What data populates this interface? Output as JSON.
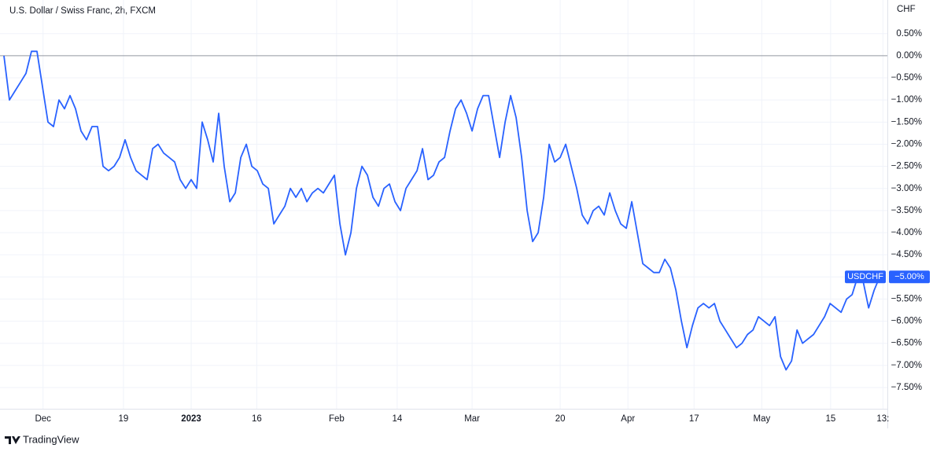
{
  "chart_data": {
    "type": "line",
    "title": "U.S. Dollar / Swiss Franc, 2h, FXCM",
    "y_unit": "CHF",
    "brand": "TradingView",
    "baseline": 0,
    "grid": true,
    "xlim": [
      0,
      160.4
    ],
    "ylim": [
      -7.98,
      1.26
    ],
    "xticks": [
      {
        "value": 7.1,
        "label": "Dec"
      },
      {
        "value": 21.7,
        "label": "19"
      },
      {
        "value": 34,
        "label": "2023",
        "bold": true
      },
      {
        "value": 45.9,
        "label": "16"
      },
      {
        "value": 60.4,
        "label": "Feb"
      },
      {
        "value": 71.4,
        "label": "14"
      },
      {
        "value": 85,
        "label": "Mar"
      },
      {
        "value": 101,
        "label": "20"
      },
      {
        "value": 113.3,
        "label": "Apr"
      },
      {
        "value": 125.3,
        "label": "17"
      },
      {
        "value": 137.6,
        "label": "May"
      },
      {
        "value": 150.1,
        "label": "15"
      },
      {
        "value": 159.6,
        "label": "13:"
      }
    ],
    "yticks": [
      {
        "value": 0.5,
        "label": "0.50%"
      },
      {
        "value": 0,
        "label": "0.00%"
      },
      {
        "value": -0.5,
        "label": "−0.50%"
      },
      {
        "value": -1,
        "label": "−1.00%"
      },
      {
        "value": -1.5,
        "label": "−1.50%"
      },
      {
        "value": -2,
        "label": "−2.00%"
      },
      {
        "value": -2.5,
        "label": "−2.50%"
      },
      {
        "value": -3,
        "label": "−3.00%"
      },
      {
        "value": -3.5,
        "label": "−3.50%"
      },
      {
        "value": -4,
        "label": "−4.00%"
      },
      {
        "value": -4.5,
        "label": "−4.50%"
      },
      {
        "value": -5,
        "label": "−5.00%"
      },
      {
        "value": -5.5,
        "label": "−5.50%"
      },
      {
        "value": -6,
        "label": "−6.00%"
      },
      {
        "value": -6.5,
        "label": "−6.50%"
      },
      {
        "value": -7,
        "label": "−7.00%"
      },
      {
        "value": -7.5,
        "label": "−7.50%"
      }
    ],
    "series": [
      {
        "name": "USDCHF",
        "color": "#2962ff",
        "last_label": "−5.00%",
        "values": [
          0.0,
          -1.0,
          -0.8,
          -0.6,
          -0.4,
          0.1,
          0.1,
          -0.7,
          -1.5,
          -1.6,
          -1.0,
          -1.2,
          -0.9,
          -1.2,
          -1.7,
          -1.9,
          -1.6,
          -1.6,
          -2.5,
          -2.6,
          -2.5,
          -2.3,
          -1.9,
          -2.3,
          -2.6,
          -2.7,
          -2.8,
          -2.1,
          -2.0,
          -2.2,
          -2.3,
          -2.4,
          -2.8,
          -3.0,
          -2.8,
          -3.0,
          -1.5,
          -1.9,
          -2.4,
          -1.3,
          -2.5,
          -3.3,
          -3.1,
          -2.3,
          -2.0,
          -2.5,
          -2.6,
          -2.9,
          -3.0,
          -3.8,
          -3.6,
          -3.4,
          -3.0,
          -3.2,
          -3.0,
          -3.3,
          -3.1,
          -3.0,
          -3.1,
          -2.9,
          -2.7,
          -3.8,
          -4.5,
          -4.0,
          -3.0,
          -2.5,
          -2.7,
          -3.2,
          -3.4,
          -3.0,
          -2.9,
          -3.3,
          -3.5,
          -3.0,
          -2.8,
          -2.6,
          -2.1,
          -2.8,
          -2.7,
          -2.4,
          -2.3,
          -1.7,
          -1.2,
          -1.0,
          -1.3,
          -1.7,
          -1.2,
          -0.9,
          -0.9,
          -1.6,
          -2.3,
          -1.5,
          -0.9,
          -1.4,
          -2.3,
          -3.5,
          -4.2,
          -4.0,
          -3.2,
          -2.0,
          -2.4,
          -2.3,
          -2.0,
          -2.5,
          -3.0,
          -3.6,
          -3.8,
          -3.5,
          -3.4,
          -3.6,
          -3.1,
          -3.5,
          -3.8,
          -3.9,
          -3.3,
          -4.0,
          -4.7,
          -4.8,
          -4.9,
          -4.9,
          -4.6,
          -4.8,
          -5.3,
          -6.0,
          -6.6,
          -6.1,
          -5.7,
          -5.6,
          -5.7,
          -5.6,
          -6.0,
          -6.2,
          -6.4,
          -6.6,
          -6.5,
          -6.3,
          -6.2,
          -5.9,
          -6.0,
          -6.1,
          -5.9,
          -6.8,
          -7.1,
          -6.9,
          -6.2,
          -6.5,
          -6.4,
          -6.3,
          -6.1,
          -5.9,
          -5.6,
          -5.7,
          -5.8,
          -5.5,
          -5.4,
          -5.0,
          -5.1,
          -5.7,
          -5.3,
          -5.0
        ]
      }
    ]
  }
}
